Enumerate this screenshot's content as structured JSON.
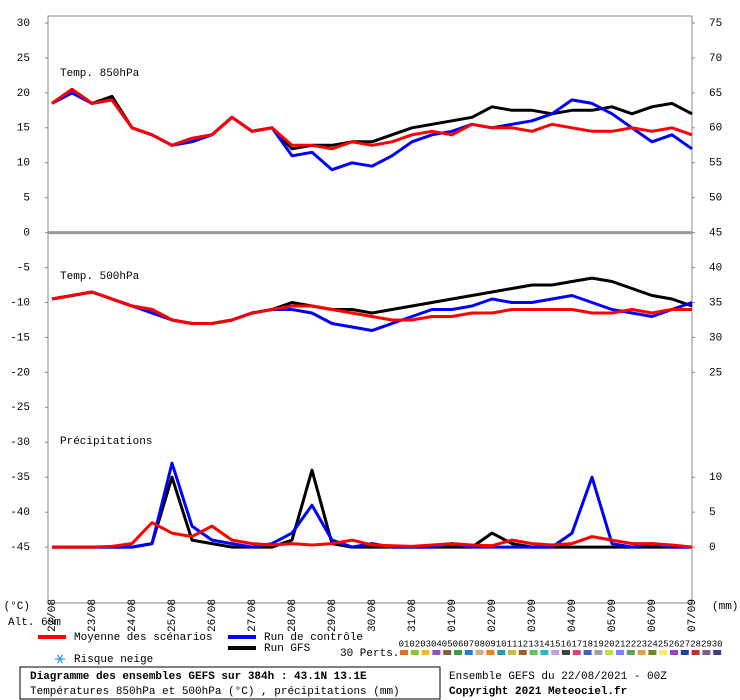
{
  "chart_data": {
    "type": "line",
    "title": "Diagramme des ensembles GEFS sur 384h : 43.1N 13.1E",
    "subtitle": "Températures 850hPa et 500hPa (°C) , précipitations (mm)",
    "y_label": "(°C)",
    "y2_label": "(mm)",
    "altitude": "Alt. 69m",
    "run_info": "Ensemble GEFS du 22/08/2021 - 00Z",
    "copyright": "Copyright 2021 Meteociel.fr",
    "snow_label": "Risque neige",
    "categories": [
      "22/08",
      null,
      "23/08",
      null,
      "24/08",
      null,
      "25/08",
      null,
      "26/08",
      null,
      "27/08",
      null,
      "28/08",
      null,
      "29/08",
      null,
      "30/08",
      null,
      "31/08",
      null,
      "01/09",
      null,
      "02/09",
      null,
      "03/09",
      null,
      "04/09",
      null,
      "05/09",
      null,
      "06/09",
      null,
      "07/09"
    ],
    "ylim": [
      -53,
      31
    ],
    "yticks": [
      30,
      25,
      20,
      15,
      10,
      5,
      0,
      -5,
      -10,
      -15,
      -20,
      -25,
      -30,
      -35,
      -40,
      -45
    ],
    "y2lim": [
      -8,
      76
    ],
    "y2ticks": [
      75,
      70,
      65,
      60,
      55,
      50,
      45,
      40,
      35,
      30,
      25,
      10,
      5,
      0
    ],
    "panels": [
      {
        "label": "Temp. 850hPa",
        "axis": "y"
      },
      {
        "label": "Temp. 500hPa",
        "axis": "y"
      },
      {
        "label": "Précipitations",
        "axis": "y2"
      }
    ],
    "series": [
      {
        "name": "Run GFS",
        "color": "#000000",
        "values": [
          [
            18.5,
            20.5,
            18.5,
            19.5,
            15,
            14,
            12.5,
            13.5,
            14,
            16.5,
            14.5,
            15,
            12,
            12.5,
            12.5,
            13,
            13,
            14,
            15,
            15.5,
            16,
            16.5,
            18,
            17.5,
            17.5,
            17,
            17.5,
            17.5,
            18,
            17,
            18,
            18.5,
            17
          ],
          [
            -9.5,
            -9,
            -8.5,
            -9.5,
            -10.5,
            -11,
            -12.5,
            -13,
            -13,
            -12.5,
            -11.5,
            -11,
            -10,
            -10.5,
            -11,
            -11,
            -11.5,
            -11,
            -10.5,
            -10,
            -9.5,
            -9,
            -8.5,
            -8,
            -7.5,
            -7.5,
            -7,
            -6.5,
            -7,
            -8,
            -9,
            -9.5,
            -10.5
          ],
          [
            0,
            0,
            0,
            0,
            0,
            0.5,
            10,
            1,
            0.5,
            0,
            0,
            0,
            1,
            11,
            0.5,
            0,
            0,
            0,
            0,
            0,
            0,
            0,
            2,
            0.5,
            0,
            0,
            0,
            0,
            0,
            0,
            0,
            0,
            0
          ]
        ]
      },
      {
        "name": "Run de contrôle",
        "color": "#0000ff",
        "values": [
          [
            18.5,
            20,
            18.5,
            19,
            15,
            14,
            12.5,
            13,
            14,
            16.5,
            14.5,
            15,
            11,
            11.5,
            9,
            10,
            9.5,
            11,
            13,
            14,
            14.5,
            15.5,
            15,
            15.5,
            16,
            17,
            19,
            18.5,
            17,
            15,
            13,
            14,
            12
          ],
          [
            -9.5,
            -9,
            -8.5,
            -9.5,
            -10.5,
            -11.5,
            -12.5,
            -13,
            -13,
            -12.5,
            -11.5,
            -11,
            -11,
            -11.5,
            -13,
            -13.5,
            -14,
            -13,
            -12,
            -11,
            -11,
            -10.5,
            -9.5,
            -10,
            -10,
            -9.5,
            -9,
            -10,
            -11,
            -11.5,
            -12,
            -11,
            -10
          ],
          [
            0,
            0,
            0,
            0,
            0,
            0.5,
            12,
            3,
            1,
            0.5,
            0,
            0.5,
            2,
            6,
            1,
            0,
            0.5,
            0,
            0,
            0,
            0.5,
            0,
            0,
            0,
            0,
            0,
            2,
            10,
            0.5,
            0,
            0.5,
            0,
            0
          ]
        ]
      },
      {
        "name": "Moyenne des scénarios",
        "color": "#ff0000",
        "values": [
          [
            18.5,
            20.5,
            18.5,
            19,
            15,
            14,
            12.5,
            13.5,
            14,
            16.5,
            14.5,
            15,
            12.5,
            12.5,
            12,
            13,
            12.5,
            13,
            14,
            14.5,
            14,
            15.5,
            15,
            15,
            14.5,
            15.5,
            15,
            14.5,
            14.5,
            15,
            14.5,
            15,
            14
          ],
          [
            -9.5,
            -9,
            -8.5,
            -9.5,
            -10.5,
            -11,
            -12.5,
            -13,
            -13,
            -12.5,
            -11.5,
            -11,
            -10.5,
            -10.5,
            -11,
            -11.5,
            -12,
            -12.5,
            -12.5,
            -12,
            -12,
            -11.5,
            -11.5,
            -11,
            -11,
            -11,
            -11,
            -11.5,
            -11.5,
            -11,
            -11.5,
            -11,
            -11
          ],
          [
            0,
            0,
            0,
            0.1,
            0.5,
            3.5,
            2,
            1.5,
            3,
            1,
            0.5,
            0.3,
            0.5,
            0.3,
            0.5,
            1,
            0.3,
            0.2,
            0.1,
            0.3,
            0.5,
            0.3,
            0.2,
            1,
            0.5,
            0.3,
            0.5,
            1.5,
            1,
            0.5,
            0.5,
            0.3,
            0
          ]
        ]
      }
    ],
    "perturbations": {
      "label": "30 Perts.",
      "names": [
        "01",
        "02",
        "03",
        "04",
        "05",
        "06",
        "07",
        "08",
        "09",
        "10",
        "11",
        "12",
        "13",
        "14",
        "15",
        "16",
        "17",
        "18",
        "19",
        "20",
        "21",
        "22",
        "23",
        "24",
        "25",
        "26",
        "27",
        "28",
        "29",
        "30"
      ],
      "colors": [
        "#e07020",
        "#8cc040",
        "#e8c020",
        "#9050c0",
        "#806040",
        "#40a040",
        "#2080e0",
        "#d0b080",
        "#f08020",
        "#20a0a0",
        "#c0c040",
        "#a06020",
        "#60c060",
        "#20c0c0",
        "#c0a0e0",
        "#404040",
        "#e04080",
        "#4060c0",
        "#a0a0a0",
        "#c0e040",
        "#8080ff",
        "#60a060",
        "#e0a040",
        "#6a8a20",
        "#f0f060",
        "#a040c0",
        "#2040a0",
        "#c03030",
        "#806080",
        "#404080"
      ]
    }
  }
}
